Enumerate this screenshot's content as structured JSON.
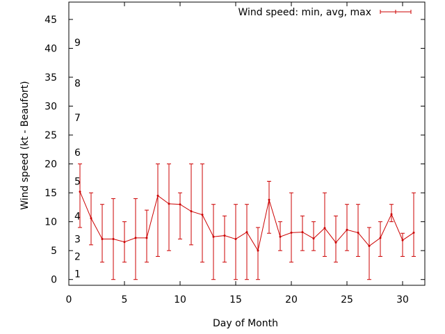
{
  "chart_data": {
    "type": "line",
    "xlabel": "Day of Month",
    "ylabel": "Wind speed (kt - Beaufort)",
    "xlim": [
      0,
      32
    ],
    "ylim": [
      -1,
      48
    ],
    "x_ticks": [
      0,
      5,
      10,
      15,
      20,
      25,
      30
    ],
    "y_ticks": [
      0,
      5,
      10,
      15,
      20,
      25,
      30,
      35,
      40,
      45
    ],
    "grid": false,
    "legend_position": "top-right",
    "series": [
      {
        "name": "Wind speed: min, avg, max",
        "color": "#cc0000",
        "style": "line with min/max error bars",
        "points": [
          {
            "x": 1,
            "min": 9,
            "avg": 15.2,
            "max": 20
          },
          {
            "x": 2,
            "min": 6,
            "avg": 10.6,
            "max": 15
          },
          {
            "x": 3,
            "min": 3,
            "avg": 7.0,
            "max": 13
          },
          {
            "x": 4,
            "min": 0,
            "avg": 7.0,
            "max": 14
          },
          {
            "x": 5,
            "min": 3,
            "avg": 6.5,
            "max": 10
          },
          {
            "x": 6,
            "min": 0,
            "avg": 7.2,
            "max": 14
          },
          {
            "x": 7,
            "min": 3,
            "avg": 7.2,
            "max": 12
          },
          {
            "x": 8,
            "min": 4,
            "avg": 14.5,
            "max": 20
          },
          {
            "x": 9,
            "min": 5,
            "avg": 13.1,
            "max": 20
          },
          {
            "x": 10,
            "min": 7,
            "avg": 13.0,
            "max": 15
          },
          {
            "x": 11,
            "min": 6,
            "avg": 11.8,
            "max": 20
          },
          {
            "x": 12,
            "min": 3,
            "avg": 11.2,
            "max": 20
          },
          {
            "x": 13,
            "min": 0,
            "avg": 7.4,
            "max": 13
          },
          {
            "x": 14,
            "min": 3,
            "avg": 7.6,
            "max": 11
          },
          {
            "x": 15,
            "min": 0,
            "avg": 7.0,
            "max": 13
          },
          {
            "x": 16,
            "min": 0,
            "avg": 8.2,
            "max": 13
          },
          {
            "x": 17,
            "min": 0,
            "avg": 5.0,
            "max": 9
          },
          {
            "x": 18,
            "min": 8,
            "avg": 13.8,
            "max": 17
          },
          {
            "x": 19,
            "min": 5,
            "avg": 7.4,
            "max": 10
          },
          {
            "x": 20,
            "min": 3,
            "avg": 8.1,
            "max": 15
          },
          {
            "x": 21,
            "min": 5,
            "avg": 8.2,
            "max": 11
          },
          {
            "x": 22,
            "min": 5,
            "avg": 7.1,
            "max": 10
          },
          {
            "x": 23,
            "min": 4,
            "avg": 8.9,
            "max": 15
          },
          {
            "x": 24,
            "min": 3,
            "avg": 6.4,
            "max": 11
          },
          {
            "x": 25,
            "min": 5,
            "avg": 8.6,
            "max": 13
          },
          {
            "x": 26,
            "min": 4,
            "avg": 8.1,
            "max": 13
          },
          {
            "x": 27,
            "min": 0,
            "avg": 5.8,
            "max": 9
          },
          {
            "x": 28,
            "min": 4,
            "avg": 7.2,
            "max": 10
          },
          {
            "x": 29,
            "min": 10,
            "avg": 11.3,
            "max": 13
          },
          {
            "x": 30,
            "min": 4,
            "avg": 6.8,
            "max": 8
          },
          {
            "x": 31,
            "min": 4,
            "avg": 8.1,
            "max": 15
          }
        ]
      }
    ],
    "annotations": [
      {
        "text": "1",
        "y": 1
      },
      {
        "text": "2",
        "y": 4
      },
      {
        "text": "3",
        "y": 7
      },
      {
        "text": "4",
        "y": 11
      },
      {
        "text": "5",
        "y": 17
      },
      {
        "text": "6",
        "y": 22
      },
      {
        "text": "7",
        "y": 28
      },
      {
        "text": "8",
        "y": 34
      },
      {
        "text": "9",
        "y": 41
      }
    ]
  }
}
